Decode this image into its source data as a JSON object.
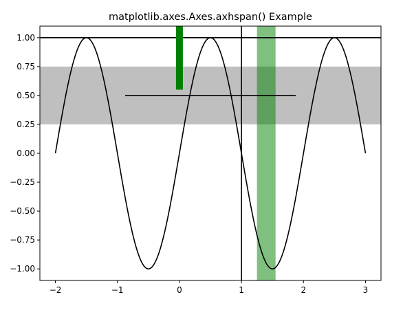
{
  "chart_data": {
    "type": "line",
    "title": "matplotlib.axes.Axes.axhspan() Example",
    "xlabel": "",
    "ylabel": "",
    "xlim": [
      -2.25,
      3.25
    ],
    "ylim": [
      -1.1,
      1.1
    ],
    "x_ticks": [
      -2,
      -1,
      0,
      1,
      2,
      3
    ],
    "x_tick_labels": [
      "−2",
      "−1",
      "0",
      "1",
      "2",
      "3"
    ],
    "y_ticks": [
      1.0,
      0.75,
      0.5,
      0.25,
      0.0,
      -0.25,
      -0.5,
      -0.75,
      -1.0
    ],
    "y_tick_labels": [
      "1.00",
      "0.75",
      "0.50",
      "0.25",
      "0.00",
      "−0.25",
      "−0.50",
      "−0.75",
      "−1.00"
    ],
    "grid": false,
    "series": [
      {
        "function": "sin(pi * x)",
        "x_range": [
          -2,
          3
        ],
        "samples": 400,
        "color": "#000000"
      }
    ],
    "axhline": [
      {
        "y": 1.0,
        "color": "#000000"
      },
      {
        "y": 0.5,
        "xmin": 0.25,
        "xmax": 0.75,
        "color": "#000000"
      }
    ],
    "axvline": [
      {
        "x": 1.0,
        "color": "#000000"
      },
      {
        "x": 0.0,
        "ymin": 0.75,
        "ymax": 1.0,
        "color": "#008000",
        "width": 10
      }
    ],
    "axhspan": [
      {
        "ymin": 0.25,
        "ymax": 0.75,
        "color": "#bfbfbf"
      }
    ],
    "axvspan": [
      {
        "xmin": 1.25,
        "xmax": 1.55,
        "color": "#008000",
        "alpha": 0.5
      }
    ]
  }
}
